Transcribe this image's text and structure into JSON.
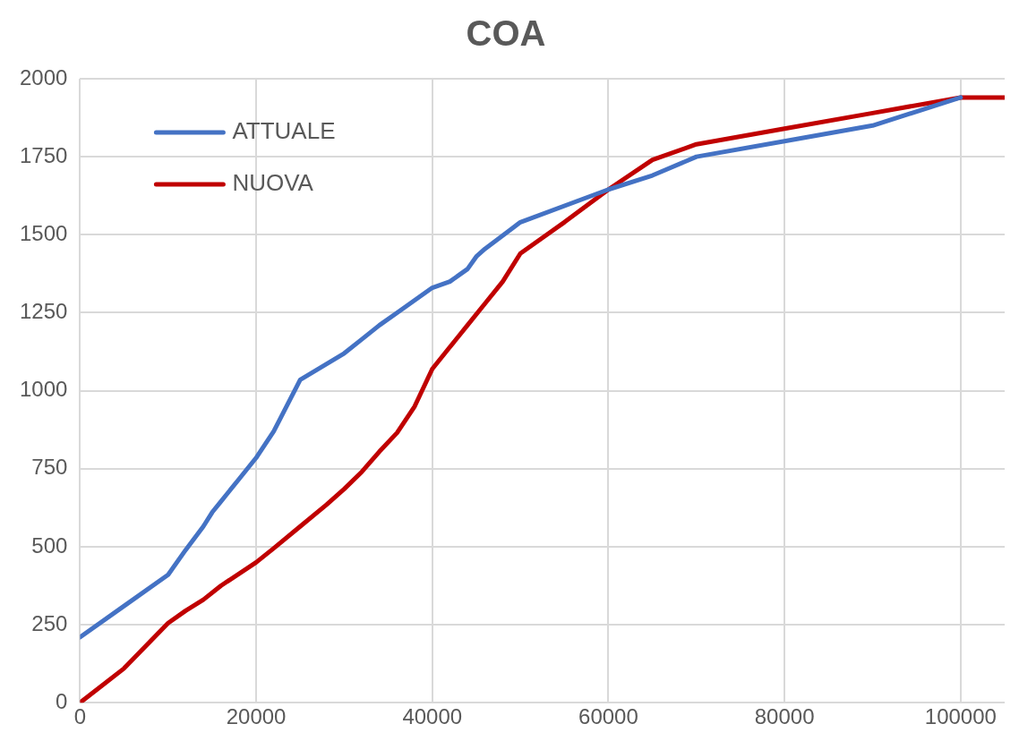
{
  "chart_data": {
    "type": "line",
    "title": "COA",
    "xlim": [
      0,
      105000
    ],
    "xticks": [
      0,
      20000,
      40000,
      60000,
      80000,
      100000
    ],
    "ylim": [
      0,
      2000
    ],
    "yticks": [
      0,
      250,
      500,
      750,
      1000,
      1250,
      1500,
      1750,
      2000
    ],
    "grid": true,
    "legend": "top left",
    "marker": "none",
    "line_style": "solid",
    "series": [
      {
        "name": "ATTUALE",
        "color": "#4472c4",
        "x": [
          0,
          5000,
          10000,
          12000,
          14000,
          15000,
          16000,
          18000,
          20000,
          22000,
          25000,
          30000,
          32000,
          34000,
          36000,
          40000,
          42000,
          44000,
          45000,
          46000,
          50000,
          60000,
          65000,
          70000,
          80000,
          90000,
          100000
        ],
        "values": [
          210,
          310,
          410,
          490,
          565,
          610,
          645,
          715,
          785,
          870,
          1035,
          1120,
          1165,
          1210,
          1250,
          1330,
          1350,
          1390,
          1430,
          1455,
          1540,
          1645,
          1690,
          1750,
          1800,
          1850,
          1940
        ]
      },
      {
        "name": "NUOVA",
        "color": "#c00000",
        "x": [
          0,
          5000,
          10000,
          12000,
          14000,
          16000,
          20000,
          22000,
          25000,
          28000,
          30000,
          32000,
          34000,
          36000,
          38000,
          40000,
          42000,
          44000,
          46000,
          48000,
          50000,
          55000,
          60000,
          65000,
          70000,
          80000,
          90000,
          100000,
          105000
        ],
        "values": [
          0,
          110,
          255,
          295,
          330,
          375,
          450,
          495,
          565,
          635,
          685,
          740,
          805,
          865,
          950,
          1070,
          1140,
          1210,
          1280,
          1350,
          1440,
          1540,
          1645,
          1740,
          1790,
          1840,
          1890,
          1940,
          1940
        ]
      }
    ]
  }
}
